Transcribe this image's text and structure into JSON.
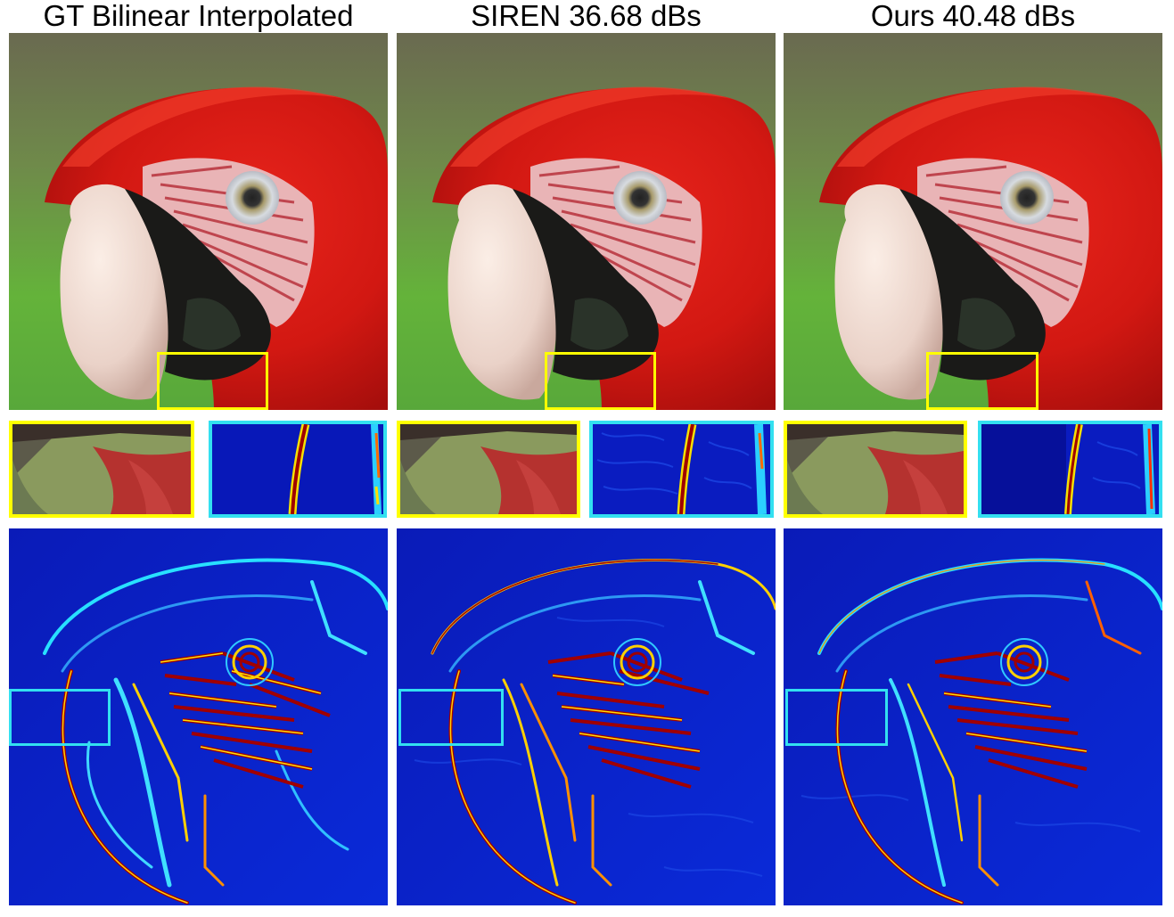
{
  "figure": {
    "columns": [
      {
        "title": "GT Bilinear Interpolated"
      },
      {
        "title": "SIREN 36.68 dBs"
      },
      {
        "title": "Ours 40.48 dBs"
      }
    ]
  },
  "colors": {
    "yellow_box": "#ffff00",
    "cyan_box": "#33e0f0",
    "heatmap_bg": "#0a1fd0",
    "heatmap_hot": "#a00000"
  }
}
